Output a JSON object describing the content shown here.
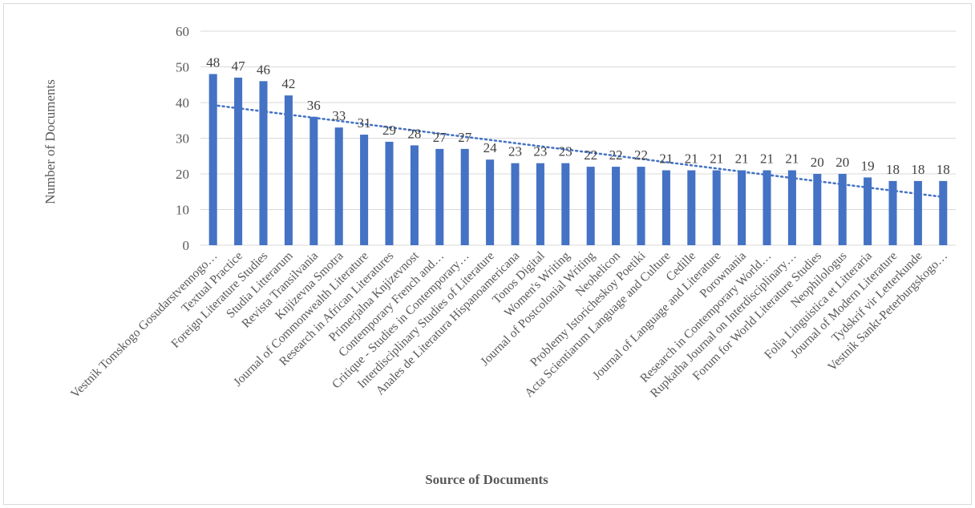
{
  "chart_data": {
    "type": "bar",
    "title": "",
    "xlabel": "Source of Documents",
    "ylabel": "Number of Documents",
    "ylim": [
      0,
      60
    ],
    "yticks": [
      0,
      10,
      20,
      30,
      40,
      50,
      60
    ],
    "grid": true,
    "bar_color": "#4472c4",
    "trendline": {
      "type": "linear",
      "style": "dotted",
      "color": "#4472c4"
    },
    "categories": [
      "Vestnik Tomskogo Gosudarstvennogo…",
      "Textual Practice",
      "Foreign Literature Studies",
      "Studia Litterarum",
      "Revista Transilvania",
      "Knjizevna Smotra",
      "Journal of Commonwealth Literature",
      "Research in African Literatures",
      "Primerjalna Knjizevnost",
      "Contemporary French and…",
      "Critique - Studies in Contemporary…",
      "Interdisciplinary Studies of Literature",
      "Anales de Literatura Hispanoamericana",
      "Tonos Digital",
      "Women's Writing",
      "Journal of Postcolonial Writing",
      "Neohelicon",
      "Problemy Istoricheskoy Poetiki",
      "Acta Scientiarum Language and Culture",
      "Cedille",
      "Journal of Language and Literature",
      "Porownania",
      "Research in Contemporary World…",
      "Rupkatha Journal on Interdisciplinary…",
      "Forum for World Literature Studies",
      "Neophilologus",
      "Folia Linguistica et Litteraria",
      "Journal of Modern Literature",
      "Tydskrif vir Letterkunde",
      "Vestnik Sankt-Peterburgskogo…"
    ],
    "values": [
      48,
      47,
      46,
      42,
      36,
      33,
      31,
      29,
      28,
      27,
      27,
      24,
      23,
      23,
      23,
      22,
      22,
      22,
      21,
      21,
      21,
      21,
      21,
      21,
      20,
      20,
      19,
      18,
      18,
      18
    ]
  }
}
